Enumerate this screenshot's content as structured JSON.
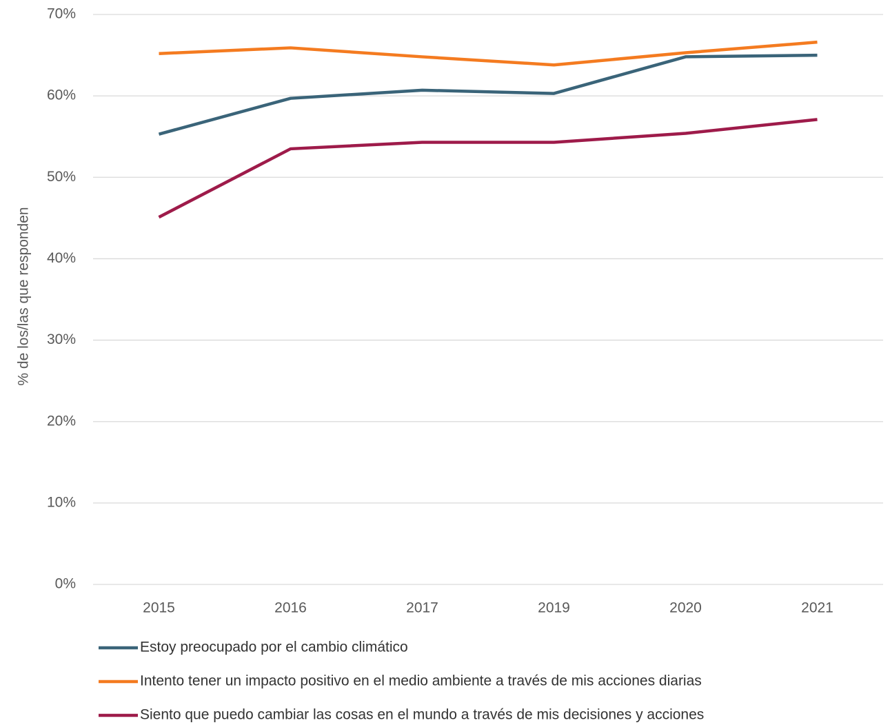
{
  "chart_data": {
    "type": "line",
    "ylabel": "% de los/las que responden",
    "categories": [
      "2015",
      "2016",
      "2017",
      "2019",
      "2020",
      "2021"
    ],
    "series": [
      {
        "name": "Estoy preocupado por el cambio climático",
        "color": "#3a6479",
        "values": [
          55.3,
          59.7,
          60.7,
          60.3,
          64.8,
          65.0
        ]
      },
      {
        "name": "Intento tener un impacto positivo en el medio ambiente a través de mis acciones diarias",
        "color": "#f47b20",
        "values": [
          65.2,
          65.9,
          64.8,
          63.8,
          65.3,
          66.6
        ]
      },
      {
        "name": "Siento que puedo cambiar las cosas en el mundo a través de mis decisiones y acciones",
        "color": "#9e1b4a",
        "values": [
          45.1,
          53.5,
          54.3,
          54.3,
          55.4,
          57.1
        ]
      }
    ],
    "ylim": [
      0,
      70
    ],
    "yticks": [
      {
        "value": 0,
        "label": "0%"
      },
      {
        "value": 10,
        "label": "10%"
      },
      {
        "value": 20,
        "label": "20%"
      },
      {
        "value": 30,
        "label": "30%"
      },
      {
        "value": 40,
        "label": "40%"
      },
      {
        "value": 50,
        "label": "50%"
      },
      {
        "value": 60,
        "label": "60%"
      },
      {
        "value": 70,
        "label": "70%"
      }
    ],
    "grid": true,
    "legend": "bottom"
  }
}
